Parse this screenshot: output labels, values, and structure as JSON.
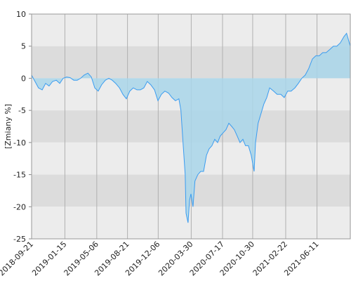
{
  "chart_data": {
    "type": "area",
    "y_label": "[Zmiany %]",
    "x": [
      "2018-09-21",
      "2018-10-03",
      "2018-10-15",
      "2018-10-28",
      "2018-11-09",
      "2018-11-21",
      "2018-12-03",
      "2018-12-16",
      "2018-12-28",
      "2019-01-09",
      "2019-01-21",
      "2019-02-02",
      "2019-02-15",
      "2019-02-27",
      "2019-03-11",
      "2019-03-23",
      "2019-04-05",
      "2019-04-17",
      "2019-04-29",
      "2019-05-11",
      "2019-05-23",
      "2019-06-05",
      "2019-06-17",
      "2019-06-29",
      "2019-07-11",
      "2019-07-24",
      "2019-08-05",
      "2019-08-17",
      "2019-08-29",
      "2019-09-10",
      "2019-09-23",
      "2019-10-05",
      "2019-10-17",
      "2019-10-29",
      "2019-11-10",
      "2019-11-23",
      "2019-12-05",
      "2019-12-17",
      "2019-12-29",
      "2020-01-11",
      "2020-01-23",
      "2020-02-04",
      "2020-02-16",
      "2020-02-23",
      "2020-03-02",
      "2020-03-09",
      "2020-03-12",
      "2020-03-19",
      "2020-03-24",
      "2020-03-29",
      "2020-04-05",
      "2020-04-12",
      "2020-04-22",
      "2020-05-02",
      "2020-05-12",
      "2020-05-22",
      "2020-05-31",
      "2020-06-10",
      "2020-06-20",
      "2020-06-30",
      "2020-07-09",
      "2020-07-19",
      "2020-07-29",
      "2020-08-08",
      "2020-08-18",
      "2020-08-27",
      "2020-09-06",
      "2020-09-16",
      "2020-09-26",
      "2020-10-05",
      "2020-10-15",
      "2020-10-25",
      "2020-11-04",
      "2020-11-09",
      "2020-11-18",
      "2020-11-28",
      "2020-12-08",
      "2020-12-18",
      "2020-12-28",
      "2021-01-11",
      "2021-01-23",
      "2021-02-05",
      "2021-02-17",
      "2021-03-01",
      "2021-03-13",
      "2021-03-26",
      "2021-04-07",
      "2021-04-19",
      "2021-05-01",
      "2021-05-13",
      "2021-05-26",
      "2021-06-07",
      "2021-06-19",
      "2021-07-01",
      "2021-07-13",
      "2021-07-26",
      "2021-08-07",
      "2021-08-19",
      "2021-08-31",
      "2021-09-13",
      "2021-09-22",
      "2021-10-05"
    ],
    "series": [
      {
        "color": "#3a9cf0",
        "fill": "#a9d6ea",
        "values": [
          0.5,
          -0.5,
          -1.5,
          -1.8,
          -0.8,
          -1.2,
          -0.5,
          -0.3,
          -0.8,
          0,
          0.2,
          0.1,
          -0.3,
          -0.3,
          0,
          0.5,
          0.8,
          0.2,
          -1.5,
          -2,
          -1,
          -0.3,
          0,
          -0.3,
          -0.8,
          -1.5,
          -2.5,
          -3.2,
          -2,
          -1.5,
          -1.8,
          -1.8,
          -1.5,
          -0.5,
          -1,
          -1.8,
          -3.5,
          -2.5,
          -2,
          -2.3,
          -3,
          -3.5,
          -3.2,
          -5,
          -10.5,
          -15,
          -21,
          -22.5,
          -19,
          -18,
          -20,
          -16,
          -15,
          -14.5,
          -14.5,
          -12,
          -11,
          -10.5,
          -9.5,
          -10,
          -9,
          -8.5,
          -8,
          -7,
          -7.5,
          -8,
          -9,
          -10,
          -9.5,
          -10.5,
          -10.5,
          -12,
          -14.5,
          -10,
          -7,
          -5.5,
          -4,
          -3,
          -1.5,
          -2,
          -2.5,
          -2.5,
          -3,
          -2,
          -2,
          -1.5,
          -0.8,
          0,
          0.5,
          1.5,
          3,
          3.5,
          3.5,
          4,
          4,
          4.5,
          5,
          5,
          5.5,
          6.5,
          7,
          5
        ]
      }
    ],
    "xlim": [
      "2018-09-21",
      "2021-10-05"
    ],
    "xticks": [
      "2018-09-21",
      "2019-01-15",
      "2019-05-06",
      "2019-08-21",
      "2019-12-06",
      "2020-03-30",
      "2020-07-17",
      "2020-10-30",
      "2021-02-22",
      "2021-06-11"
    ],
    "ylim": [
      -25,
      10
    ],
    "yticks": [
      10,
      5,
      0,
      -5,
      -10,
      -15,
      -20,
      -25
    ],
    "grid": true
  }
}
